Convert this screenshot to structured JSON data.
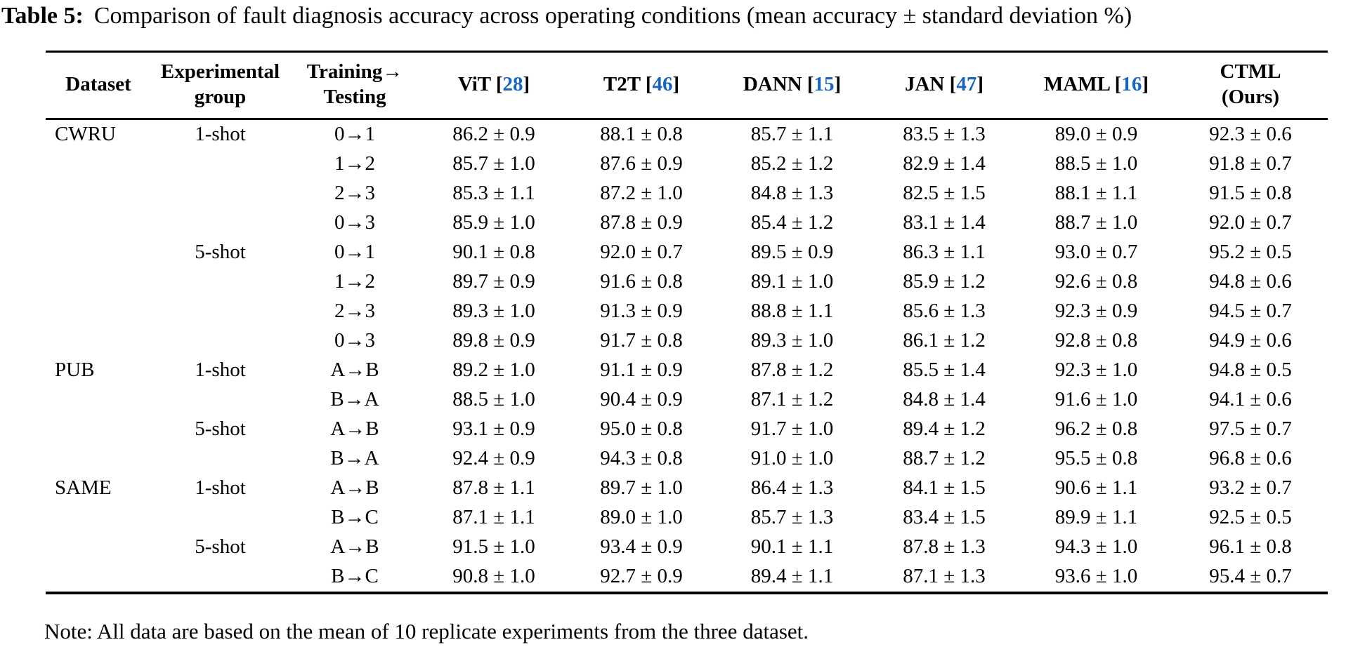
{
  "caption": {
    "label": "Table 5:",
    "text": "Comparison of fault diagnosis accuracy across operating conditions (mean accuracy ± standard deviation %)"
  },
  "note": "Note: All data are based on the mean of 10 replicate experiments from the three dataset.",
  "colors": {
    "citation_blue": "#1665c1",
    "text": "#000000",
    "background": "#ffffff"
  },
  "table": {
    "columns": [
      {
        "key": "dataset",
        "lines": [
          "Dataset"
        ]
      },
      {
        "key": "group",
        "lines": [
          "Experimental",
          "group"
        ]
      },
      {
        "key": "transfer",
        "lines": [
          "Training→",
          "Testing"
        ]
      },
      {
        "key": "vit",
        "lines": [
          "ViT"
        ],
        "cite": "28"
      },
      {
        "key": "t2t",
        "lines": [
          "T2T"
        ],
        "cite": "46"
      },
      {
        "key": "dann",
        "lines": [
          "DANN"
        ],
        "cite": "15"
      },
      {
        "key": "jan",
        "lines": [
          "JAN"
        ],
        "cite": "47"
      },
      {
        "key": "maml",
        "lines": [
          "MAML"
        ],
        "cite": "16"
      },
      {
        "key": "ctml",
        "lines": [
          "CTML",
          "(Ours)"
        ]
      }
    ],
    "rows": [
      [
        "CWRU",
        "1-shot",
        "0→1",
        "86.2 ± 0.9",
        "88.1 ± 0.8",
        "85.7 ± 1.1",
        "83.5 ± 1.3",
        "89.0 ± 0.9",
        "92.3 ± 0.6"
      ],
      [
        "",
        "",
        "1→2",
        "85.7 ± 1.0",
        "87.6 ± 0.9",
        "85.2 ± 1.2",
        "82.9 ± 1.4",
        "88.5 ± 1.0",
        "91.8 ± 0.7"
      ],
      [
        "",
        "",
        "2→3",
        "85.3 ± 1.1",
        "87.2 ± 1.0",
        "84.8 ± 1.3",
        "82.5 ± 1.5",
        "88.1 ± 1.1",
        "91.5 ± 0.8"
      ],
      [
        "",
        "",
        "0→3",
        "85.9 ± 1.0",
        "87.8 ± 0.9",
        "85.4 ± 1.2",
        "83.1 ± 1.4",
        "88.7 ± 1.0",
        "92.0 ± 0.7"
      ],
      [
        "",
        "5-shot",
        "0→1",
        "90.1 ± 0.8",
        "92.0 ± 0.7",
        "89.5 ± 0.9",
        "86.3 ± 1.1",
        "93.0 ± 0.7",
        "95.2 ± 0.5"
      ],
      [
        "",
        "",
        "1→2",
        "89.7 ± 0.9",
        "91.6 ± 0.8",
        "89.1 ± 1.0",
        "85.9 ± 1.2",
        "92.6 ± 0.8",
        "94.8 ± 0.6"
      ],
      [
        "",
        "",
        "2→3",
        "89.3 ± 1.0",
        "91.3 ± 0.9",
        "88.8 ± 1.1",
        "85.6 ± 1.3",
        "92.3 ± 0.9",
        "94.5 ± 0.7"
      ],
      [
        "",
        "",
        "0→3",
        "89.8 ± 0.9",
        "91.7 ± 0.8",
        "89.3 ± 1.0",
        "86.1 ± 1.2",
        "92.8 ± 0.8",
        "94.9 ± 0.6"
      ],
      [
        "PUB",
        "1-shot",
        "A→B",
        "89.2 ± 1.0",
        "91.1 ± 0.9",
        "87.8 ± 1.2",
        "85.5 ± 1.4",
        "92.3 ± 1.0",
        "94.8 ± 0.5"
      ],
      [
        "",
        "",
        "B→A",
        "88.5 ± 1.0",
        "90.4 ± 0.9",
        "87.1 ± 1.2",
        "84.8 ± 1.4",
        "91.6 ± 1.0",
        "94.1 ± 0.6"
      ],
      [
        "",
        "5-shot",
        "A→B",
        "93.1 ± 0.9",
        "95.0 ± 0.8",
        "91.7 ± 1.0",
        "89.4 ± 1.2",
        "96.2 ± 0.8",
        "97.5 ± 0.7"
      ],
      [
        "",
        "",
        "B→A",
        "92.4 ± 0.9",
        "94.3 ± 0.8",
        "91.0 ± 1.0",
        "88.7 ± 1.2",
        "95.5 ± 0.8",
        "96.8 ± 0.6"
      ],
      [
        "SAME",
        "1-shot",
        "A→B",
        "87.8 ± 1.1",
        "89.7 ± 1.0",
        "86.4 ± 1.3",
        "84.1 ± 1.5",
        "90.6 ± 1.1",
        "93.2 ± 0.7"
      ],
      [
        "",
        "",
        "B→C",
        "87.1 ± 1.1",
        "89.0 ± 1.0",
        "85.7 ± 1.3",
        "83.4 ± 1.5",
        "89.9 ± 1.1",
        "92.5 ± 0.5"
      ],
      [
        "",
        "5-shot",
        "A→B",
        "91.5 ± 1.0",
        "93.4 ± 0.9",
        "90.1 ± 1.1",
        "87.8 ± 1.3",
        "94.3 ± 1.0",
        "96.1 ± 0.8"
      ],
      [
        "",
        "",
        "B→C",
        "90.8 ± 1.0",
        "92.7 ± 0.9",
        "89.4 ± 1.1",
        "87.1 ± 1.3",
        "93.6 ± 1.0",
        "95.4 ± 0.7"
      ]
    ]
  }
}
